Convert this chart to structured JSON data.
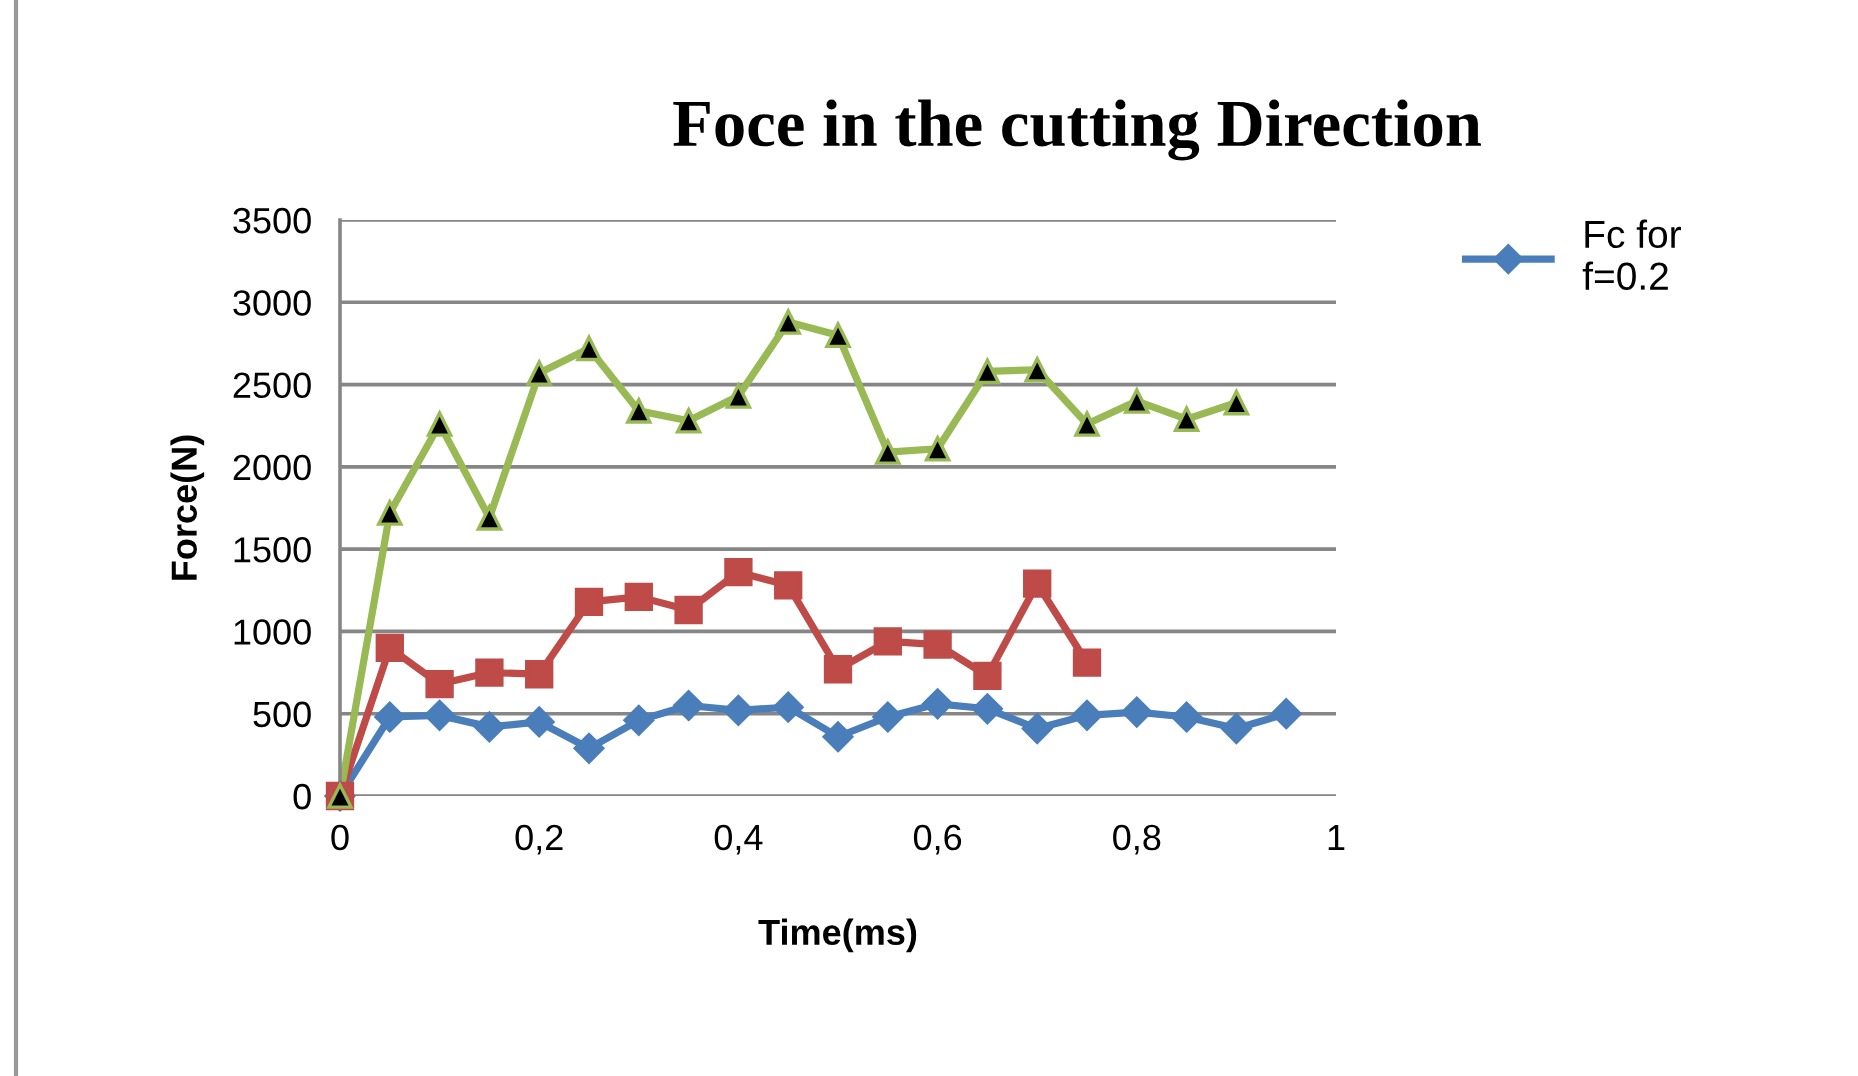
{
  "chart_data": {
    "type": "line",
    "title": "Foce in the cutting Direction",
    "xlabel": "Time(ms)",
    "ylabel": "Force(N)",
    "xlim": [
      0,
      1
    ],
    "xticks": [
      {
        "value": 0,
        "label": "0"
      },
      {
        "value": 0.2,
        "label": "0,2"
      },
      {
        "value": 0.4,
        "label": "0,4"
      },
      {
        "value": 0.6,
        "label": "0,6"
      },
      {
        "value": 0.8,
        "label": "0,8"
      },
      {
        "value": 1,
        "label": "1"
      }
    ],
    "ylim": [
      0,
      3500
    ],
    "yticks": [
      0,
      500,
      1000,
      1500,
      2000,
      2500,
      3000,
      3500
    ],
    "grid": "y",
    "legend": "right",
    "series": [
      {
        "name": "Fc for f=0.2",
        "color": "#4a7ebb",
        "marker": "diamond",
        "x": [
          0,
          0.05,
          0.1,
          0.15,
          0.2,
          0.25,
          0.3,
          0.35,
          0.4,
          0.45,
          0.5,
          0.55,
          0.6,
          0.65,
          0.7,
          0.75,
          0.8,
          0.85,
          0.9,
          0.95
        ],
        "values": [
          0,
          480,
          490,
          420,
          450,
          290,
          460,
          550,
          520,
          540,
          360,
          480,
          560,
          530,
          410,
          490,
          510,
          480,
          410,
          500
        ]
      },
      {
        "color": "#be4b48",
        "marker": "square",
        "x": [
          0,
          0.05,
          0.1,
          0.15,
          0.2,
          0.25,
          0.3,
          0.35,
          0.4,
          0.45,
          0.5,
          0.55,
          0.6,
          0.65,
          0.7,
          0.75
        ],
        "values": [
          0,
          900,
          680,
          750,
          740,
          1180,
          1210,
          1130,
          1360,
          1280,
          770,
          940,
          920,
          730,
          1290,
          810
        ]
      },
      {
        "color": "#98b954",
        "marker": "triangle",
        "x": [
          0,
          0.05,
          0.1,
          0.15,
          0.2,
          0.25,
          0.3,
          0.35,
          0.4,
          0.45,
          0.5,
          0.55,
          0.6,
          0.65,
          0.7,
          0.75,
          0.8,
          0.85,
          0.9
        ],
        "values": [
          0,
          1720,
          2260,
          1690,
          2570,
          2720,
          2340,
          2280,
          2430,
          2880,
          2800,
          2090,
          2110,
          2580,
          2590,
          2260,
          2400,
          2290,
          2390
        ]
      }
    ]
  }
}
